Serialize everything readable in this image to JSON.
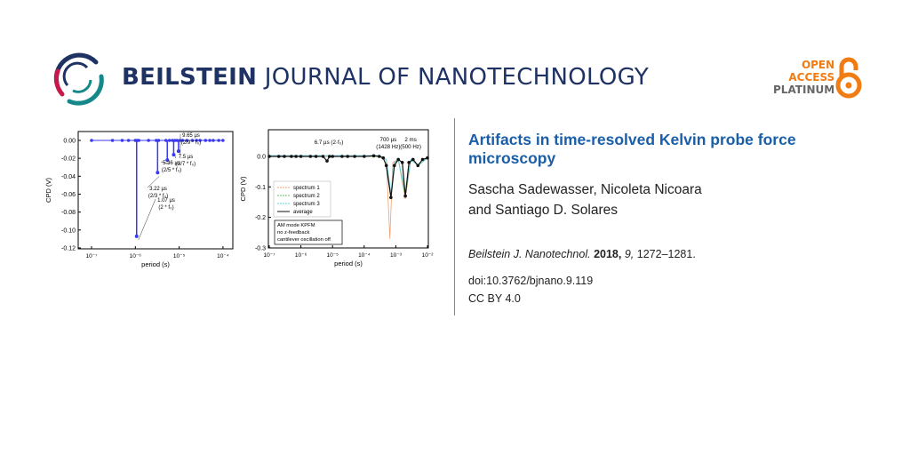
{
  "header": {
    "journal_bold": "BEILSTEIN",
    "journal_rest": "JOURNAL OF NANOTECHNOLOGY",
    "logo_colors": [
      "#1f3264",
      "#c8174a",
      "#17888a"
    ]
  },
  "badge": {
    "line1": "OPEN",
    "line2": "ACCESS",
    "line3": "PLATINUM",
    "accent": "#f07c12",
    "gray": "#666666",
    "icon": "open-lock-icon"
  },
  "article": {
    "title": "Artifacts in time-resolved Kelvin probe force microscopy",
    "authors_line1": "Sascha Sadewasser, Nicoleta Nicoara",
    "authors_line2": "and Santiago D. Solares",
    "journal_abbrev": "Beilstein J. Nanotechnol.",
    "year": "2018,",
    "volume": "9,",
    "pages": "1272–1281.",
    "doi": "doi:10.3762/bjnano.9.119",
    "license": "CC BY 4.0",
    "title_color": "#1a5ea8"
  },
  "chart_data": [
    {
      "type": "scatter",
      "xscale": "log",
      "xlabel": "period (s)",
      "ylabel": "CPD (V)",
      "xlim": [
        5e-08,
        0.00017
      ],
      "ylim": [
        -0.12,
        0.01
      ],
      "xticks": [
        "10⁻⁷",
        "10⁻⁶",
        "10⁻⁵",
        "10⁻⁴"
      ],
      "yticks": [
        "0.00",
        "-0.02",
        "-0.04",
        "-0.06",
        "-0.08",
        "-0.10",
        "-0.12"
      ],
      "color": "#3a3af0",
      "baseline_x": [
        1e-07,
        3e-07,
        5e-07,
        7e-07,
        1e-06,
        1.1e-06,
        1.2e-06,
        2e-06,
        3e-06,
        3.4e-06,
        5e-06,
        6e-06,
        7e-06,
        8e-06,
        9e-06,
        1.05e-05,
        1.2e-05,
        1.5e-05,
        2e-05,
        2.5e-05,
        3e-05,
        4e-05,
        5e-05,
        6e-05,
        8e-05,
        0.0001
      ],
      "dips": [
        {
          "x": 1.07e-06,
          "y": -0.107
        },
        {
          "x": 3.22e-06,
          "y": -0.036
        },
        {
          "x": 5.36e-06,
          "y": -0.022
        },
        {
          "x": 7.5e-06,
          "y": -0.016
        },
        {
          "x": 9.65e-06,
          "y": -0.012
        }
      ],
      "annotations": [
        {
          "l1": "9.65 µs",
          "l2": "(2/9 * f₀)"
        },
        {
          "l1": "7.5 µs",
          "l2": "(2/7 * f₀)"
        },
        {
          "l1": "5.36 µs",
          "l2": "(2/5 * f₀)"
        },
        {
          "l1": "3.22 µs",
          "l2": "(2/3 * f₀)"
        },
        {
          "l1": "1.07 µs",
          "l2": "(2 * f₀)"
        }
      ]
    },
    {
      "type": "line",
      "xscale": "log",
      "xlabel": "period (s)",
      "ylabel": "CPD (V)",
      "xlim": [
        1e-07,
        0.01
      ],
      "ylim": [
        -0.3,
        0.087
      ],
      "xticks": [
        "10⁻⁷",
        "10⁻⁶",
        "10⁻⁵",
        "10⁻⁴",
        "10⁻³",
        "10⁻²"
      ],
      "yticks": [
        "0.0",
        "-0.1",
        "-0.2",
        "-0.3"
      ],
      "series": [
        {
          "name": "spectrum 1",
          "color": "#f0a070",
          "points": [
            [
              1e-07,
              0
            ],
            [
              1e-05,
              0
            ],
            [
              0.0003,
              0
            ],
            [
              0.0005,
              -0.01
            ],
            [
              0.00065,
              -0.27
            ],
            [
              0.0008,
              -0.02
            ],
            [
              0.0012,
              -0.01
            ],
            [
              0.002,
              -0.14
            ],
            [
              0.003,
              -0.01
            ],
            [
              0.005,
              -0.03
            ],
            [
              0.01,
              -0.005
            ]
          ]
        },
        {
          "name": "spectrum 2",
          "color": "#60c060",
          "points": [
            [
              1e-07,
              0
            ],
            [
              1e-05,
              0
            ],
            [
              0.0003,
              0
            ],
            [
              0.0005,
              -0.01
            ],
            [
              0.0007,
              -0.13
            ],
            [
              0.0009,
              -0.02
            ],
            [
              0.0012,
              -0.01
            ],
            [
              0.002,
              -0.13
            ],
            [
              0.003,
              -0.01
            ],
            [
              0.005,
              -0.03
            ],
            [
              0.01,
              -0.005
            ]
          ]
        },
        {
          "name": "spectrum 3",
          "color": "#60d0e0",
          "points": [
            [
              1e-07,
              0.003
            ],
            [
              1e-05,
              0.003
            ],
            [
              0.0003,
              0.003
            ],
            [
              0.0005,
              -0.01
            ],
            [
              0.0007,
              -0.12
            ],
            [
              0.0009,
              -0.02
            ],
            [
              0.0012,
              -0.01
            ],
            [
              0.002,
              -0.12
            ],
            [
              0.003,
              -0.01
            ],
            [
              0.005,
              -0.03
            ],
            [
              0.01,
              -0.005
            ]
          ]
        },
        {
          "name": "average",
          "color": "#111111",
          "points": [
            [
              1e-07,
              0
            ],
            [
              2e-07,
              0
            ],
            [
              3e-07,
              0
            ],
            [
              5e-07,
              0
            ],
            [
              7e-07,
              0
            ],
            [
              1e-06,
              0
            ],
            [
              2e-06,
              0
            ],
            [
              3e-06,
              0
            ],
            [
              5e-06,
              0
            ],
            [
              6.7e-06,
              -0.015
            ],
            [
              8e-06,
              0
            ],
            [
              1e-05,
              0
            ],
            [
              2e-05,
              0
            ],
            [
              3e-05,
              0
            ],
            [
              5e-05,
              0
            ],
            [
              0.0001,
              0
            ],
            [
              0.0002,
              0.002
            ],
            [
              0.0003,
              0
            ],
            [
              0.0004,
              -0.005
            ],
            [
              0.0005,
              -0.03
            ],
            [
              0.0007,
              -0.135
            ],
            [
              0.0009,
              -0.03
            ],
            [
              0.0012,
              -0.01
            ],
            [
              0.0016,
              -0.02
            ],
            [
              0.002,
              -0.13
            ],
            [
              0.0026,
              -0.02
            ],
            [
              0.0035,
              -0.01
            ],
            [
              0.005,
              -0.03
            ],
            [
              0.007,
              -0.01
            ],
            [
              0.01,
              -0.005
            ]
          ]
        }
      ],
      "annotations": [
        {
          "text": "6.7 µs (2·f₀)"
        },
        {
          "l1": "700 µs",
          "l2": "(1428 Hz)"
        },
        {
          "l1": "2 ms",
          "l2": "(500 Hz)"
        }
      ],
      "note": [
        "AM mode KPFM",
        "no z-feedback",
        "cantilever oscillation off"
      ],
      "legend": "bottom-left"
    }
  ]
}
